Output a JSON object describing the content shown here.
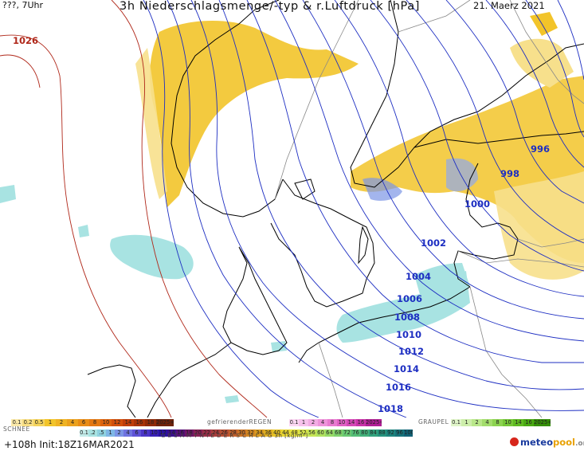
{
  "header": {
    "left": "???, 7Uhr",
    "title": "3h Niederschlagsmenge/-typ & r.Luftdruck [hPa]",
    "date": "21. Maerz 2021"
  },
  "isobars": [
    "1026",
    "996",
    "998",
    "1000",
    "1002",
    "1004",
    "1006",
    "1008",
    "1010",
    "1012",
    "1014",
    "1016",
    "1018"
  ],
  "legend": {
    "rain_label": "",
    "freezing_rain_label": "gefrierenderREGEN",
    "graupel_label": "GRAUPEL",
    "snow_label": "SCHNEE",
    "total_label": "G E S A M T N I E D E R S C H L A G  3h  [kg/m²]",
    "rain_steps": [
      "0.1",
      "0.2",
      "0.5",
      "1",
      "2",
      "4",
      "6",
      "8",
      "10",
      "12",
      "14",
      "16",
      "18",
      "2025+"
    ],
    "freezing_steps": [
      "0.1",
      "1",
      "2",
      "4",
      "8",
      "10",
      "14",
      "16",
      "2025+"
    ],
    "graupel_steps": [
      "0.1",
      "1",
      "2",
      "4",
      "8",
      "10",
      "14",
      "16",
      "2025+"
    ],
    "snow_steps": [
      "0.1",
      ".2",
      ".5",
      "1",
      "2",
      "4",
      "6",
      "8",
      "10",
      "12",
      "14",
      "16",
      "18",
      "20",
      "22",
      "24",
      "26",
      "28",
      "30",
      "32",
      "34",
      "36",
      "40",
      "44",
      "48",
      "52",
      "56",
      "60",
      "64",
      "68",
      "72",
      "76",
      "80",
      "84",
      "88",
      "92",
      "96",
      "100"
    ],
    "colors": {
      "rain": "#f2c42a",
      "rain_light": "#f7e08c",
      "snow": "#a8e3e2",
      "freezing": "#f4b6e6",
      "graupel": "#b9e78a",
      "isobar": "#1d2ec2",
      "high_isobar": "#b0281a"
    }
  },
  "footer": {
    "init": "+108h  Init:18Z16MAR2021"
  },
  "logo": {
    "prefix": "meteo",
    "mid": "pool",
    "suffix": ".org"
  }
}
